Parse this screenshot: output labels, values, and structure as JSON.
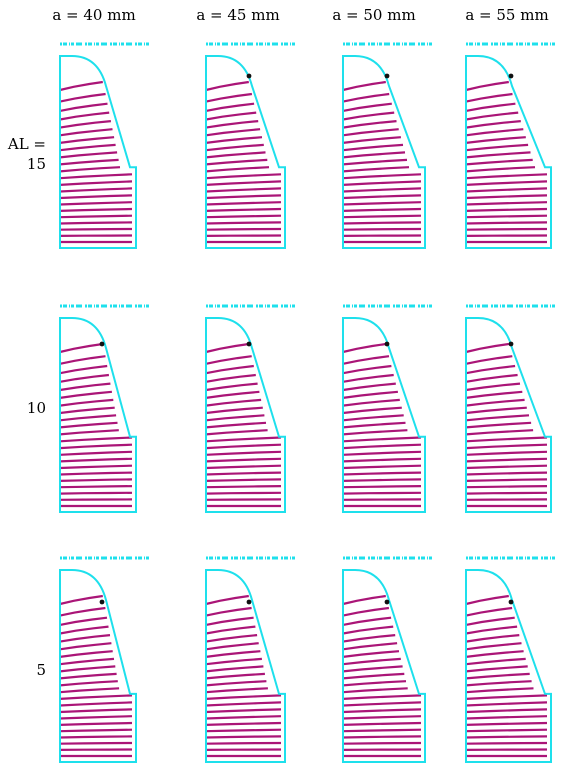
{
  "columns": [
    {
      "label": "a = 40 mm"
    },
    {
      "label": "a = 45 mm"
    },
    {
      "label": "a = 50 mm"
    },
    {
      "label": "a = 55 mm"
    }
  ],
  "rows": [
    {
      "label_line1": "AL =",
      "label_line2": "15"
    },
    {
      "label_line1": "",
      "label_line2": "10"
    },
    {
      "label_line1": "",
      "label_line2": "5"
    }
  ],
  "colors": {
    "outline": "#1ee0ec",
    "contours": "#aa1577",
    "marker": "#111111",
    "header_scribble": "#1ee0ec"
  }
}
